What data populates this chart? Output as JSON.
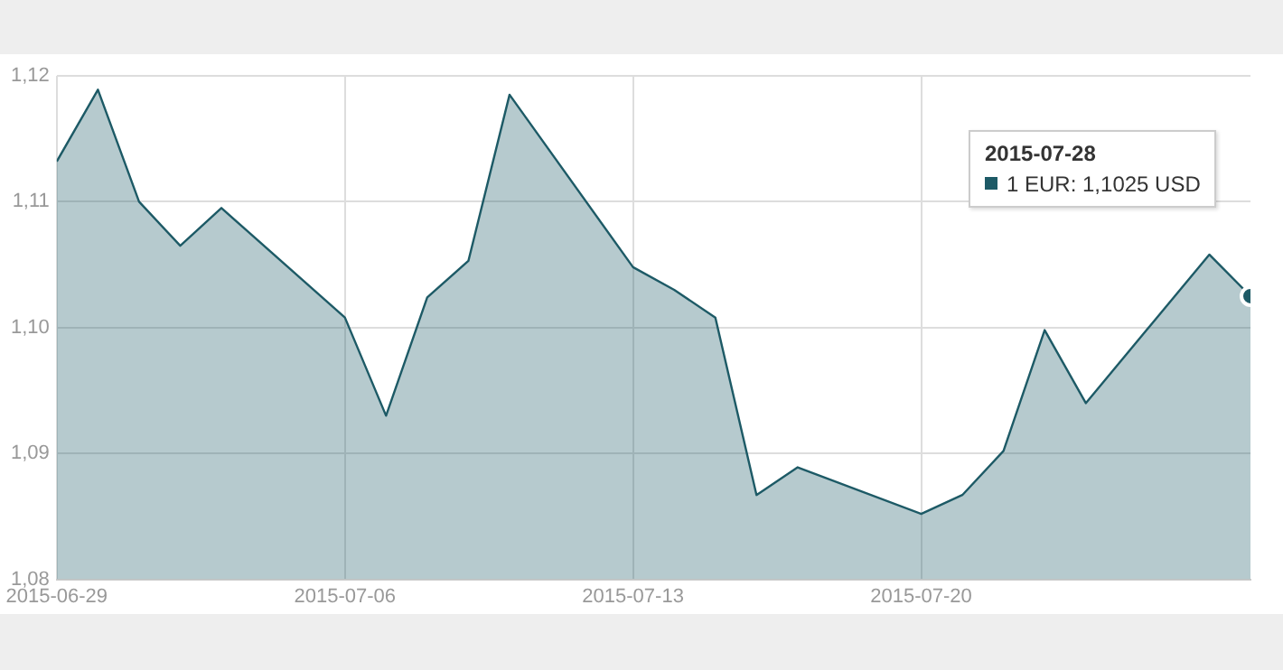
{
  "chart_data": {
    "type": "area",
    "x": [
      "2015-06-29",
      "2015-06-30",
      "2015-07-01",
      "2015-07-02",
      "2015-07-03",
      "2015-07-06",
      "2015-07-07",
      "2015-07-08",
      "2015-07-09",
      "2015-07-10",
      "2015-07-13",
      "2015-07-14",
      "2015-07-15",
      "2015-07-16",
      "2015-07-17",
      "2015-07-20",
      "2015-07-21",
      "2015-07-22",
      "2015-07-23",
      "2015-07-24",
      "2015-07-27",
      "2015-07-28"
    ],
    "series": [
      {
        "color": "#1d5a66",
        "values": [
          1.1132,
          1.1189,
          1.11,
          1.1065,
          1.1095,
          1.1008,
          1.093,
          1.1024,
          1.1053,
          1.1185,
          1.1048,
          1.103,
          1.1008,
          1.0867,
          1.0889,
          1.0852,
          1.0867,
          1.0902,
          1.0998,
          1.094,
          1.1058,
          1.1025
        ]
      }
    ],
    "xlim": [
      "2015-06-29",
      "2015-07-28"
    ],
    "xticks": [
      "2015-06-29",
      "2015-07-06",
      "2015-07-13",
      "2015-07-20"
    ],
    "ylim": [
      1.08,
      1.12
    ],
    "yticks": [
      {
        "value": 1.08,
        "label": "1,08"
      },
      {
        "value": 1.09,
        "label": "1,09"
      },
      {
        "value": 1.1,
        "label": "1,10"
      },
      {
        "value": 1.11,
        "label": "1,11"
      },
      {
        "value": 1.12,
        "label": "1,12"
      }
    ],
    "grid": true,
    "legend": false,
    "marker": "none",
    "line_style": "solid",
    "annotations": [
      "2015-07-28\n1 EUR: 1,1025 USD"
    ]
  }
}
